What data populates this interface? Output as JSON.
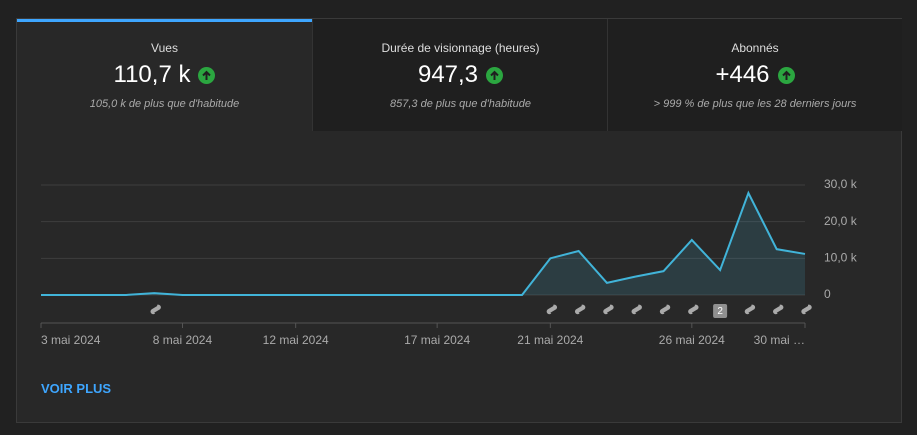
{
  "tabs": [
    {
      "title": "Vues",
      "value": "110,7 k",
      "note": "105,0 k de plus que d'habitude"
    },
    {
      "title": "Durée de visionnage (heures)",
      "value": "947,3",
      "note": "857,3 de plus que d'habitude"
    },
    {
      "title": "Abonnés",
      "value": "+446",
      "note": "> 999 % de plus que les 28 derniers jours"
    }
  ],
  "chart_data": {
    "type": "line",
    "categories": [
      "3 mai 2024",
      null,
      null,
      null,
      null,
      "8 mai 2024",
      null,
      null,
      null,
      "12 mai 2024",
      null,
      null,
      null,
      null,
      "17 mai 2024",
      null,
      null,
      null,
      "21 mai 2024",
      null,
      null,
      null,
      null,
      "26 mai 2024",
      null,
      null,
      null,
      "30 mai …"
    ],
    "series": [
      {
        "name": "Vues",
        "color": "#41b4d9",
        "values": [
          0,
          0,
          0,
          0,
          0.5,
          0,
          0,
          0,
          0,
          0,
          0,
          0,
          0,
          0,
          0,
          0,
          0,
          0,
          10,
          12,
          3.3,
          5,
          6.5,
          15,
          6.8,
          27.8,
          12.5,
          11.2
        ]
      }
    ],
    "ylim": [
      0,
      30
    ],
    "yticks": [
      0,
      {
        "value": 10,
        "label": "10,0 k"
      },
      {
        "value": 20,
        "label": "20,0 k"
      },
      {
        "value": 30,
        "label": "30,0 k"
      }
    ],
    "grid": true,
    "annotations": [
      "2"
    ]
  },
  "link": "VOIR PLUS"
}
